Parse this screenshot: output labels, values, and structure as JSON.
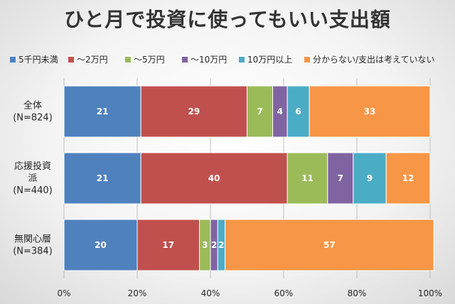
{
  "chart_data": {
    "type": "bar",
    "orientation": "horizontal",
    "stacked": true,
    "title": "ひと月で投資に使ってもいい支出額",
    "categories": [
      [
        "全体",
        "(N=824)"
      ],
      [
        "応援投資",
        "派",
        "(N=440)"
      ],
      [
        "無関心層",
        "(N=384)"
      ]
    ],
    "series": [
      {
        "name": "5千円未満",
        "color": "#4F81BD",
        "values": [
          21,
          21,
          20
        ]
      },
      {
        "name": "～2万円",
        "color": "#C0504D",
        "values": [
          29,
          40,
          17
        ]
      },
      {
        "name": "～5万円",
        "color": "#9BBB59",
        "values": [
          7,
          11,
          3
        ]
      },
      {
        "name": "～10万円",
        "color": "#8064A2",
        "values": [
          4,
          7,
          2
        ]
      },
      {
        "name": "10万円以上",
        "color": "#4BACC6",
        "values": [
          6,
          9,
          2
        ]
      },
      {
        "name": "分からない/支出は考えていない",
        "color": "#F79646",
        "values": [
          33,
          12,
          57
        ]
      }
    ],
    "xlim": [
      0,
      100
    ],
    "x_ticks": [
      "0%",
      "20%",
      "40%",
      "60%",
      "80%",
      "100%"
    ],
    "grid": true,
    "legend": "top"
  }
}
